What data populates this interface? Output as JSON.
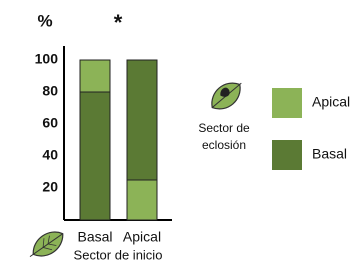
{
  "chart_data": {
    "type": "bar",
    "stacked": true,
    "y_label": "%",
    "annotation": "*",
    "x_label": "Sector de inicio",
    "legend_title": [
      "Sector de",
      "eclosión"
    ],
    "categories": [
      "Basal",
      "Apical"
    ],
    "series": [
      {
        "name": "Apical",
        "color": "#8cb357",
        "values": [
          20,
          25
        ]
      },
      {
        "name": "Basal",
        "color": "#5b7a34",
        "values": [
          80,
          75
        ]
      }
    ],
    "ylim": [
      0,
      100
    ],
    "yticks": [
      20,
      40,
      60,
      80,
      100
    ]
  }
}
